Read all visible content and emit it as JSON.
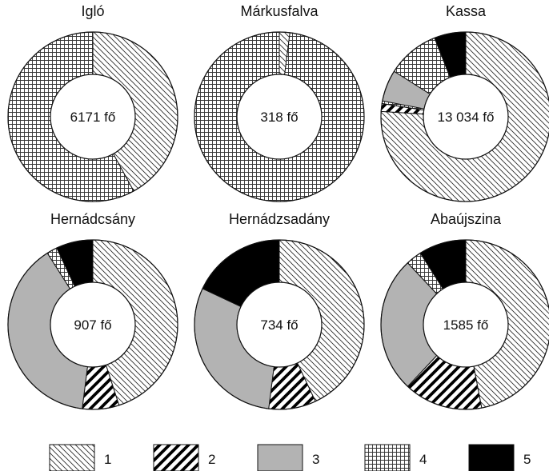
{
  "chart_data": {
    "type": "donut",
    "legend": {
      "position": "bottom",
      "entries": [
        {
          "label": "1",
          "pattern": "light-diagonal-hatch"
        },
        {
          "label": "2",
          "pattern": "bold-diagonal-stripes"
        },
        {
          "label": "3",
          "pattern": "solid-gray",
          "color": "#b3b3b3"
        },
        {
          "label": "4",
          "pattern": "crosshatch-grid"
        },
        {
          "label": "5",
          "pattern": "solid-black",
          "color": "#000000"
        }
      ]
    },
    "charts": [
      {
        "title": "Igló",
        "total": "6171 fő",
        "values": [
          {
            "category": "1",
            "value": 42
          },
          {
            "category": "4",
            "value": 58
          }
        ]
      },
      {
        "title": "Márkusfalva",
        "total": "318 fő",
        "values": [
          {
            "category": "1",
            "value": 2
          },
          {
            "category": "4",
            "value": 98
          }
        ]
      },
      {
        "title": "Kassa",
        "total": "13 034 fő",
        "values": [
          {
            "category": "1",
            "value": 76
          },
          {
            "category": "2",
            "value": 1.5
          },
          {
            "category": "4",
            "value": 0.5
          },
          {
            "category": "3",
            "value": 6
          },
          {
            "category": "4",
            "value": 10
          },
          {
            "category": "5",
            "value": 6
          }
        ]
      },
      {
        "title": "Hernádcsány",
        "total": "907 fő",
        "values": [
          {
            "category": "1",
            "value": 45
          },
          {
            "category": "2",
            "value": 7
          },
          {
            "category": "3",
            "value": 39
          },
          {
            "category": "4",
            "value": 2
          },
          {
            "category": "5",
            "value": 7
          }
        ]
      },
      {
        "title": "Hernádzsadány",
        "total": "734 fő",
        "values": [
          {
            "category": "1",
            "value": 43
          },
          {
            "category": "2",
            "value": 9
          },
          {
            "category": "3",
            "value": 30
          },
          {
            "category": "5",
            "value": 18
          }
        ]
      },
      {
        "title": "Abaújszina",
        "total": "1585 fő",
        "values": [
          {
            "category": "1",
            "value": 47
          },
          {
            "category": "2",
            "value": 15
          },
          {
            "category": "3",
            "value": 26
          },
          {
            "category": "4",
            "value": 3
          },
          {
            "category": "5",
            "value": 9
          }
        ]
      }
    ]
  }
}
